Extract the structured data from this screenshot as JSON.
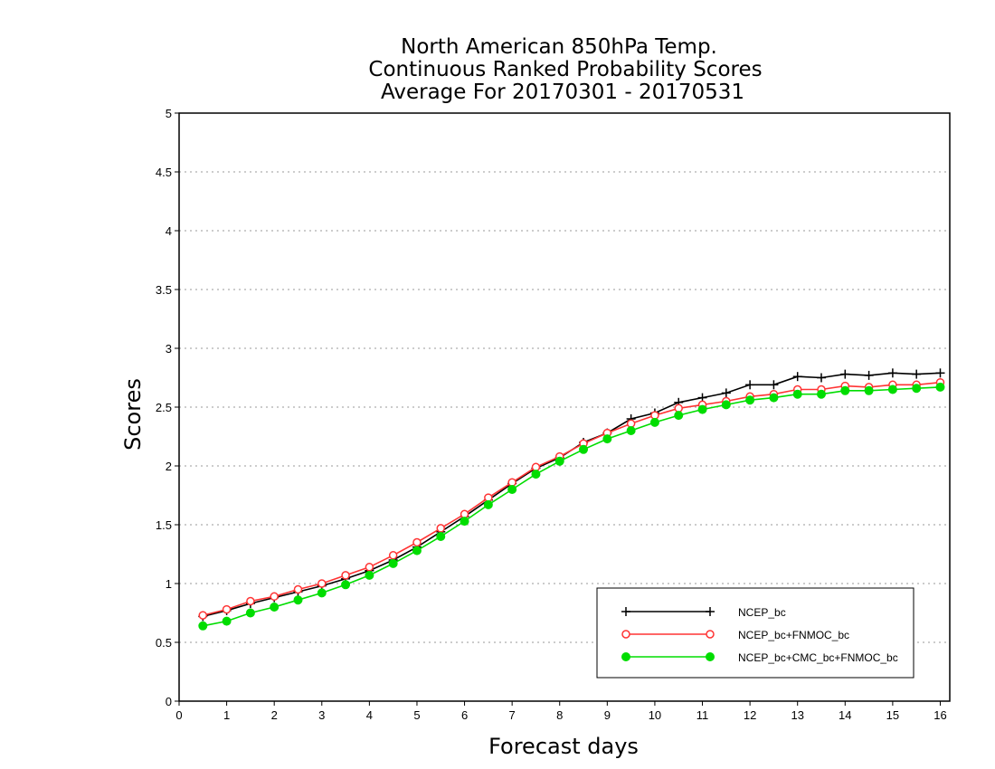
{
  "chart_data": {
    "type": "line",
    "title_lines": [
      "North American 850hPa Temp.",
      "Continuous Ranked Probability Scores",
      "Average For 20170301 - 20170531"
    ],
    "xlabel": "Forecast days",
    "ylabel": "Scores",
    "xlim": [
      0,
      16.2
    ],
    "ylim": [
      0,
      5
    ],
    "x_ticks": [
      0,
      1,
      2,
      3,
      4,
      5,
      6,
      7,
      8,
      9,
      10,
      11,
      12,
      13,
      14,
      15,
      16
    ],
    "y_ticks": [
      0,
      0.5,
      1,
      1.5,
      2,
      2.5,
      3,
      3.5,
      4,
      4.5,
      5
    ],
    "grid": "horizontal dotted",
    "legend_position": "bottom-right",
    "x": [
      0.5,
      1,
      1.5,
      2,
      2.5,
      3,
      3.5,
      4,
      4.5,
      5,
      5.5,
      6,
      6.5,
      7,
      7.5,
      8,
      8.5,
      9,
      9.5,
      10,
      10.5,
      11,
      11.5,
      12,
      12.5,
      13,
      13.5,
      14,
      14.5,
      15,
      15.5,
      16
    ],
    "series": [
      {
        "name": "NCEP_bc",
        "color": "#000000",
        "marker": "plus",
        "values": [
          0.72,
          0.77,
          0.83,
          0.88,
          0.93,
          0.98,
          1.04,
          1.11,
          1.2,
          1.31,
          1.44,
          1.57,
          1.71,
          1.85,
          1.98,
          2.07,
          2.2,
          2.28,
          2.4,
          2.45,
          2.54,
          2.58,
          2.62,
          2.69,
          2.69,
          2.76,
          2.75,
          2.78,
          2.77,
          2.79,
          2.78,
          2.79
        ]
      },
      {
        "name": "NCEP_bc+FNMOC_bc",
        "color": "#ff3333",
        "marker": "open-circle",
        "values": [
          0.73,
          0.78,
          0.85,
          0.89,
          0.95,
          1.0,
          1.07,
          1.14,
          1.24,
          1.35,
          1.47,
          1.59,
          1.73,
          1.86,
          1.99,
          2.08,
          2.19,
          2.28,
          2.36,
          2.43,
          2.49,
          2.52,
          2.55,
          2.59,
          2.61,
          2.65,
          2.65,
          2.68,
          2.67,
          2.69,
          2.69,
          2.71
        ]
      },
      {
        "name": "NCEP_bc+CMC_bc+FNMOC_bc",
        "color": "#00dd00",
        "marker": "filled-circle",
        "values": [
          0.64,
          0.68,
          0.75,
          0.8,
          0.86,
          0.92,
          0.99,
          1.07,
          1.17,
          1.28,
          1.4,
          1.53,
          1.67,
          1.8,
          1.93,
          2.04,
          2.14,
          2.23,
          2.3,
          2.37,
          2.43,
          2.48,
          2.52,
          2.56,
          2.58,
          2.61,
          2.61,
          2.64,
          2.64,
          2.65,
          2.66,
          2.67
        ]
      }
    ]
  }
}
